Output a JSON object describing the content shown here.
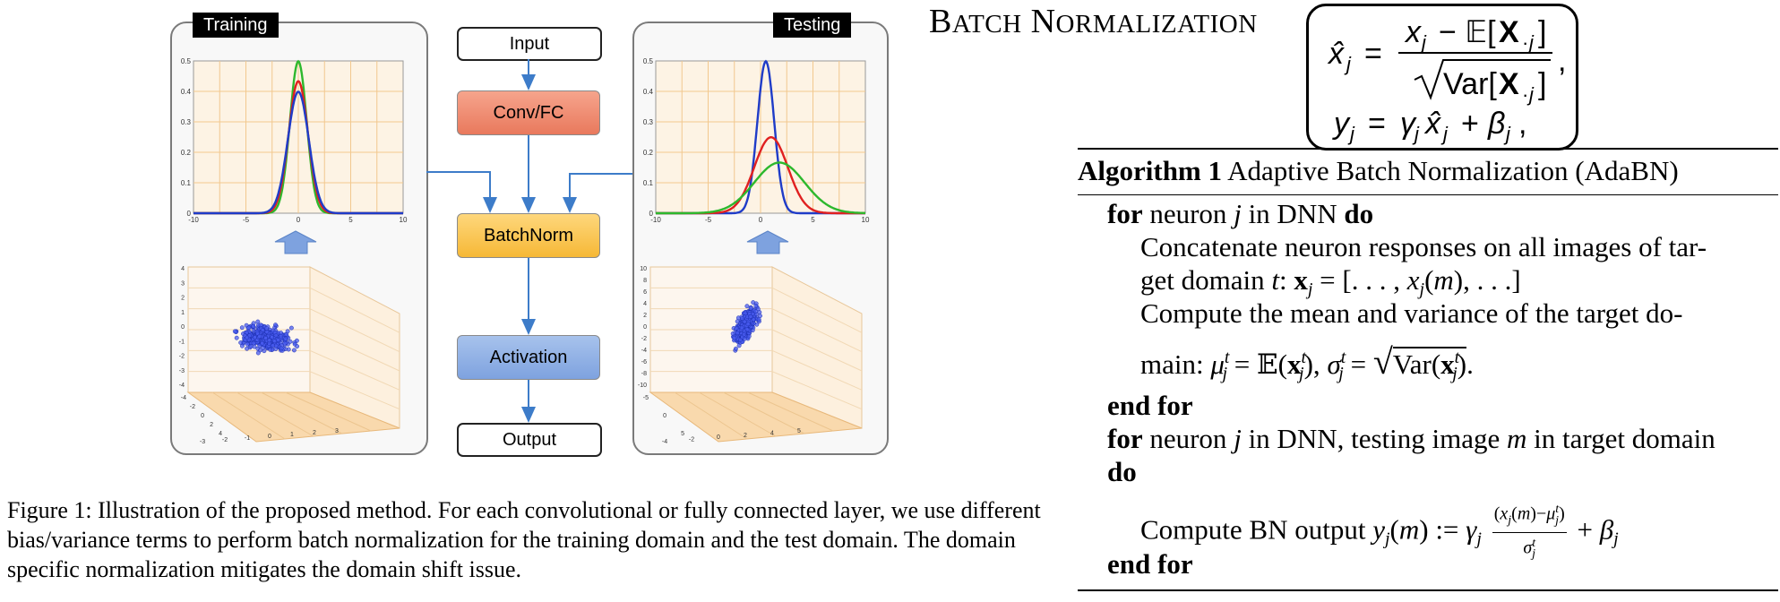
{
  "figure": {
    "training_label": "Training",
    "testing_label": "Testing",
    "flow": {
      "input": "Input",
      "conv": "Conv/FC",
      "batchnorm": "BatchNorm",
      "activation": "Activation",
      "output": "Output"
    },
    "training_plot": {
      "yticks": [
        "0.5",
        "0.4",
        "0.3",
        "0.2",
        "0.1",
        "0"
      ],
      "xticks": [
        "-10",
        "-5",
        "0",
        "5",
        "10"
      ],
      "curves": [
        {
          "color": "#2db82d",
          "mean": 0,
          "std": 0.8
        },
        {
          "color": "#e02020",
          "mean": 0,
          "std": 0.92
        },
        {
          "color": "#1f3cc8",
          "mean": 0,
          "std": 1.0
        }
      ]
    },
    "testing_plot": {
      "yticks": [
        "0.5",
        "0.4",
        "0.3",
        "0.2",
        "0.1",
        "0"
      ],
      "xticks": [
        "-10",
        "-5",
        "0",
        "5",
        "10"
      ],
      "curves": [
        {
          "color": "#1f3cc8",
          "mean": 0.5,
          "std": 0.8
        },
        {
          "color": "#e02020",
          "mean": 1.0,
          "std": 1.6
        },
        {
          "color": "#2db82d",
          "mean": 1.8,
          "std": 2.4
        }
      ]
    },
    "training_scatter": {
      "yticks": [
        "4",
        "3",
        "2",
        "1",
        "0",
        "-1",
        "-2",
        "-3",
        "-4"
      ],
      "xticks": [
        "-3",
        "-2",
        "-1",
        "0",
        "1",
        "2",
        "3"
      ],
      "left_ticks": [
        "-4",
        "-2",
        "0",
        "2",
        "4"
      ]
    },
    "testing_scatter": {
      "yticks": [
        "10",
        "8",
        "6",
        "4",
        "2",
        "0",
        "-2",
        "-4",
        "-6",
        "-8",
        "-10"
      ],
      "xticks": [
        "-4",
        "-2",
        "0",
        "2",
        "4",
        "5"
      ],
      "left_ticks": [
        "-5",
        "0",
        "5"
      ]
    },
    "caption": "Figure 1: Illustration of the proposed method. For each convolutional or fully connected layer, we use different bias/variance terms to perform batch normalization for the training domain and the test domain. The domain specific normalization mitigates the domain shift issue."
  },
  "batch_norm": {
    "title_first": "B",
    "title_first_rest": "ATCH",
    "title_second": "N",
    "title_second_rest": "ORMALIZATION"
  },
  "algorithm": {
    "title_bold": "Algorithm 1",
    "title_rest": "Adaptive Batch Normalization (AdaBN)",
    "kw_for": "for",
    "kw_do": "do",
    "kw_end_for": "end for",
    "line1_mid": "neuron",
    "line1_tail": "in DNN",
    "line2": "Concatenate neuron responses on all images of tar-",
    "line3_pre": "get domain",
    "line4": "Compute the mean and variance of the target do-",
    "line5_pre": "main:",
    "line7_mid": "neuron",
    "line7_tail": "in DNN, testing image",
    "line7_tail2": "in target domain",
    "line9_pre": "Compute BN output"
  }
}
